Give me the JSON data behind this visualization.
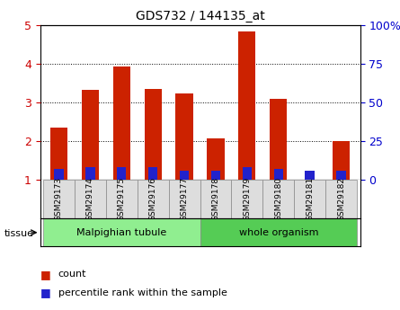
{
  "title": "GDS732 / 144135_at",
  "samples": [
    "GSM29173",
    "GSM29174",
    "GSM29175",
    "GSM29176",
    "GSM29177",
    "GSM29178",
    "GSM29179",
    "GSM29180",
    "GSM29181",
    "GSM29182"
  ],
  "count_values": [
    2.35,
    3.32,
    3.92,
    3.35,
    3.22,
    2.08,
    4.82,
    3.1,
    1.0,
    2.0
  ],
  "percentile_values": [
    7,
    8,
    8,
    8,
    6,
    6,
    8,
    7,
    6,
    6
  ],
  "tissue_groups": [
    {
      "label": "Malpighian tubule",
      "start": 0,
      "end": 5,
      "color": "#90EE90"
    },
    {
      "label": "whole organism",
      "start": 5,
      "end": 10,
      "color": "#55CC55"
    }
  ],
  "bar_color_red": "#CC2200",
  "bar_color_blue": "#2222CC",
  "left_ylim": [
    1,
    5
  ],
  "right_ylim": [
    0,
    100
  ],
  "left_yticks": [
    1,
    2,
    3,
    4,
    5
  ],
  "right_yticks": [
    0,
    25,
    50,
    75,
    100
  ],
  "right_yticklabels": [
    "0",
    "25",
    "50",
    "75",
    "100%"
  ],
  "left_tick_color": "#CC0000",
  "right_tick_color": "#0000CC",
  "grid_color": "black",
  "background_color": "white",
  "tissue_label": "tissue",
  "legend_count": "count",
  "legend_pct": "percentile rank within the sample",
  "bar_width": 0.55,
  "percentile_bar_width": 0.3
}
